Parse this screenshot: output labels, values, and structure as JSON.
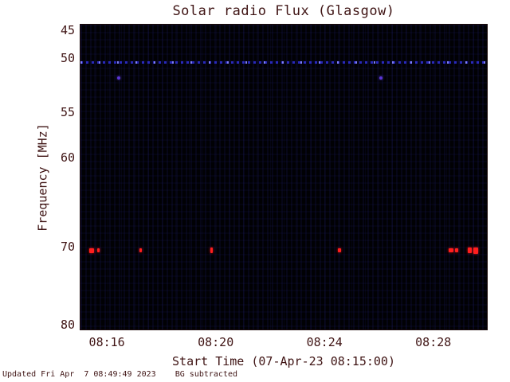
{
  "colors": {
    "text": "#3f1414",
    "frame": "#1c0b0b",
    "plot_bg": "#010104",
    "interference": "#3232e6",
    "burst": "#ff1e1e",
    "point": "#5b35d5",
    "page_bg": "#ffffff"
  },
  "footer": {
    "text": "Updated Fri Apr  7 08:49:49 2023    BG subtracted"
  },
  "chart_data": {
    "type": "heatmap",
    "title": "Solar radio Flux (Glasgow)",
    "xlabel": "Start Time (07-Apr-23 08:15:00)",
    "ylabel": "Frequency [MHz]",
    "start_time": "07-Apr-23 08:15:00",
    "x_range_seconds": [
      0,
      900
    ],
    "x_ticks": [
      {
        "label": "08:16",
        "t_sec": 60
      },
      {
        "label": "08:20",
        "t_sec": 300
      },
      {
        "label": "08:24",
        "t_sec": 540
      },
      {
        "label": "08:28",
        "t_sec": 780
      }
    ],
    "y_axis_inverted": true,
    "y_range_mhz": [
      45,
      80
    ],
    "y_ticks": [
      {
        "label": "45",
        "mhz": 45
      },
      {
        "label": "50",
        "mhz": 50
      },
      {
        "label": "55",
        "mhz": 55
      },
      {
        "label": "60",
        "mhz": 60
      },
      {
        "label": "70",
        "mhz": 70
      },
      {
        "label": "80",
        "mhz": 80
      }
    ],
    "background": "black with faint blue noise striping (BG subtracted)",
    "interference_line": {
      "frequency_mhz": 50.3,
      "style": "dashed",
      "color": "#3232e6",
      "extent": "full width"
    },
    "point_sources": [
      {
        "t_sec": 84,
        "frequency_mhz": 51.8,
        "color": "#5b35d5",
        "w": 4,
        "h": 4
      },
      {
        "t_sec": 663,
        "frequency_mhz": 51.8,
        "color": "#5b35d5",
        "w": 4,
        "h": 4
      }
    ],
    "bursts": [
      {
        "t_sec": 25,
        "frequency_mhz": 70.4,
        "w": 6,
        "h": 6
      },
      {
        "t_sec": 39,
        "frequency_mhz": 70.4,
        "w": 3,
        "h": 5
      },
      {
        "t_sec": 132,
        "frequency_mhz": 70.4,
        "w": 3,
        "h": 5
      },
      {
        "t_sec": 290,
        "frequency_mhz": 70.4,
        "w": 3,
        "h": 7
      },
      {
        "t_sec": 571,
        "frequency_mhz": 70.4,
        "w": 4,
        "h": 5
      },
      {
        "t_sec": 818,
        "frequency_mhz": 70.4,
        "w": 6,
        "h": 5
      },
      {
        "t_sec": 830,
        "frequency_mhz": 70.4,
        "w": 4,
        "h": 5
      },
      {
        "t_sec": 858,
        "frequency_mhz": 70.4,
        "w": 5,
        "h": 7
      },
      {
        "t_sec": 872,
        "frequency_mhz": 70.4,
        "w": 6,
        "h": 8
      }
    ]
  }
}
